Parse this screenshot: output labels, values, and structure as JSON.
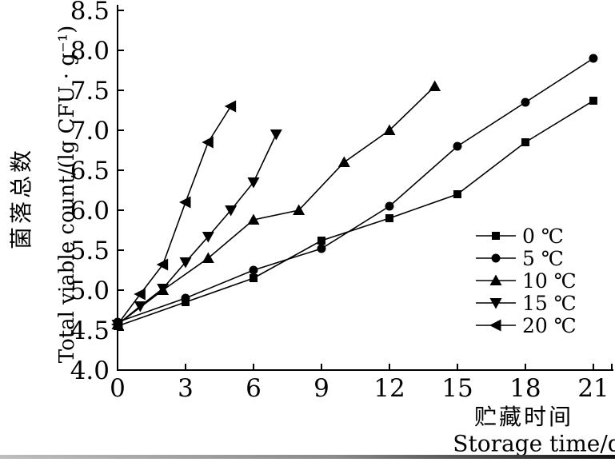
{
  "figure": {
    "background": "#ffffff",
    "ink_color": "#000000"
  },
  "chart_data": {
    "type": "line",
    "title": "",
    "grid": false,
    "series_color": "#000000",
    "legend_position": "middle-right",
    "x_axis": {
      "label_zh": "贮藏时间",
      "label_en": "Storage time/d",
      "ticks": [
        0,
        3,
        6,
        9,
        12,
        15,
        18,
        21
      ],
      "range": [
        0,
        21.9
      ]
    },
    "y_axis": {
      "label_zh": "菌落总数",
      "label_en": "Total viable count/(lg CFU · g⁻¹)",
      "ticks": [
        4.0,
        4.5,
        5.0,
        5.5,
        6.0,
        6.5,
        7.0,
        7.5,
        8.0,
        8.5
      ],
      "range": [
        4.0,
        8.5
      ]
    },
    "series": [
      {
        "name": "0 ℃",
        "marker": "square",
        "x": [
          0,
          3,
          6,
          9,
          12,
          15,
          18,
          21
        ],
        "y": [
          4.55,
          4.85,
          5.15,
          5.62,
          5.9,
          6.2,
          6.85,
          7.37
        ]
      },
      {
        "name": "5 ℃",
        "marker": "circle",
        "x": [
          0,
          3,
          6,
          9,
          12,
          15,
          18,
          21
        ],
        "y": [
          4.6,
          4.9,
          5.25,
          5.52,
          6.05,
          6.8,
          7.35,
          7.9
        ]
      },
      {
        "name": "10 ℃",
        "marker": "triangle-up",
        "x": [
          0,
          2,
          4,
          6,
          8,
          10,
          12,
          14
        ],
        "y": [
          4.57,
          5.0,
          5.4,
          5.88,
          6.0,
          6.6,
          7.0,
          7.55
        ]
      },
      {
        "name": "15 ℃",
        "marker": "triangle-down",
        "x": [
          0,
          1,
          2,
          3,
          4,
          5,
          6,
          7
        ],
        "y": [
          4.57,
          4.8,
          5.02,
          5.35,
          5.67,
          6.0,
          6.35,
          6.95
        ]
      },
      {
        "name": "20 ℃",
        "marker": "triangle-left",
        "x": [
          0,
          1,
          2,
          3,
          4,
          5
        ],
        "y": [
          4.57,
          4.95,
          5.32,
          6.1,
          6.85,
          7.3
        ]
      }
    ]
  }
}
